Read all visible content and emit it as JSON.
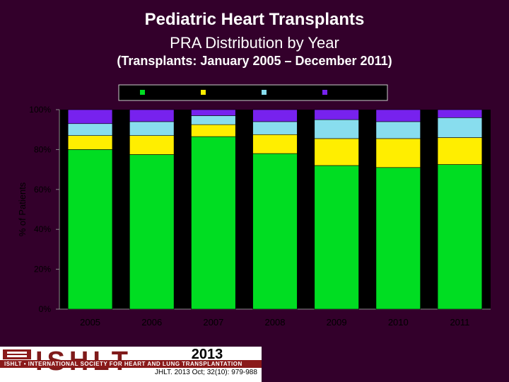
{
  "header": {
    "title": "Pediatric Heart Transplants",
    "subtitle": "PRA Distribution by Year",
    "period": "(Transplants: January 2005 – December 2011)"
  },
  "colors": {
    "background": "#33002b",
    "plot_background": "#000000",
    "pra_0_10": "#00dd22",
    "pra_11_30": "#ffee00",
    "pra_31_80": "#88ddee",
    "pra_gt80": "#7722ee"
  },
  "chart_data": {
    "type": "bar",
    "stacked": true,
    "categories": [
      "2005",
      "2006",
      "2007",
      "2008",
      "2009",
      "2010",
      "2011"
    ],
    "series": [
      {
        "color": "#00dd22",
        "values": [
          80,
          77.5,
          86.5,
          78,
          72,
          71,
          72.5
        ]
      },
      {
        "color": "#ffee00",
        "values": [
          7,
          9.5,
          6,
          9.5,
          13.5,
          14.5,
          13.5
        ]
      },
      {
        "color": "#88ddee",
        "values": [
          6,
          7,
          4.5,
          6.5,
          9.5,
          8.5,
          10
        ]
      },
      {
        "color": "#7722ee",
        "values": [
          7,
          6,
          3,
          6,
          5,
          6,
          4
        ]
      }
    ],
    "ylabel": "% of Patients",
    "ylim": [
      0,
      100
    ],
    "yticks": [
      "0%",
      "20%",
      "40%",
      "60%",
      "80%",
      "100%"
    ],
    "ytick_values": [
      0,
      20,
      40,
      60,
      80,
      100
    ],
    "legend_placement": "top-center",
    "grid": false
  },
  "footer": {
    "logo_text": "ISHLT",
    "tagline": "ISHLT • INTERNATIONAL SOCIETY FOR HEART AND LUNG TRANSPLANTATION",
    "year": "2013",
    "citation": "JHLT. 2013 Oct; 32(10): 979-988"
  }
}
